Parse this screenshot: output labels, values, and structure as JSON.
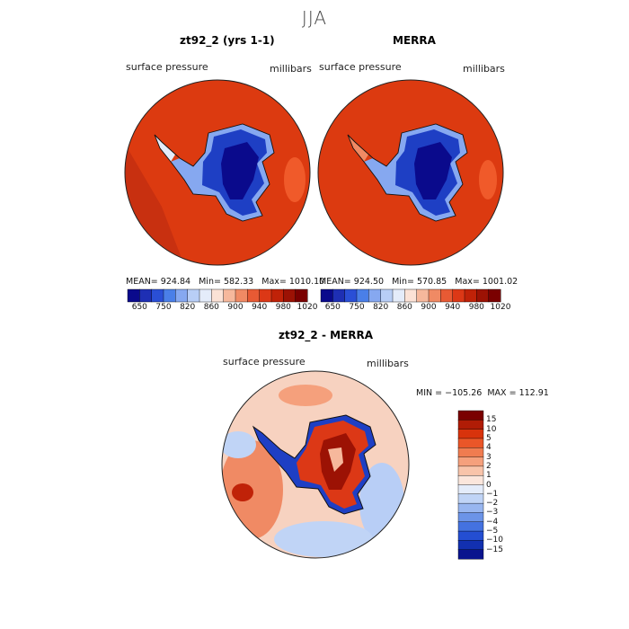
{
  "figure": {
    "season": "JJA"
  },
  "panel_model": {
    "title": "zt92_2 (yrs 1-1)",
    "variable": "surface pressure",
    "units": "millibars",
    "stats": {
      "mean": "924.84",
      "min": "582.33",
      "max": "1010.10"
    }
  },
  "panel_obs": {
    "title": "MERRA",
    "variable": "surface pressure",
    "units": "millibars",
    "stats": {
      "mean": "924.50",
      "min": "570.85",
      "max": "1001.02"
    }
  },
  "panel_diff": {
    "title": "zt92_2 - MERRA",
    "variable": "surface pressure",
    "units": "millibars",
    "stats": {
      "min": "−105.26",
      "max": "112.91"
    }
  },
  "colorbar_abs": {
    "tick_labels": [
      "650",
      "750",
      "820",
      "860",
      "900",
      "940",
      "980",
      "1020"
    ],
    "colors": [
      "#0a0a8c",
      "#1e2fb4",
      "#2a4fd6",
      "#4a7fe8",
      "#86a8f0",
      "#b8cef6",
      "#e4ecfa",
      "#fbe2d6",
      "#f6b89c",
      "#f08a64",
      "#e85a34",
      "#dc3816",
      "#c02208",
      "#9c1204",
      "#7a0000"
    ]
  },
  "colorbar_diff": {
    "tick_labels": [
      "15",
      "10",
      "5",
      "4",
      "3",
      "2",
      "1",
      "0",
      "−1",
      "−2",
      "−3",
      "−4",
      "−5",
      "−10",
      "−15"
    ],
    "colors": [
      "#7a0000",
      "#b01c06",
      "#d8330c",
      "#ea5628",
      "#f07c50",
      "#f5a07c",
      "#f8c4aa",
      "#fbe6dc",
      "#e4ecfa",
      "#c0d4f6",
      "#98b6f0",
      "#6c94e8",
      "#4472e0",
      "#244ed2",
      "#1230b0",
      "#0a148e"
    ]
  },
  "map_colors": {
    "ocean_high": "#dc3a10",
    "ocean_deep": "#c83010",
    "ice_plateau": "#0a0a8c",
    "ice_mid": "#1e3fc4",
    "ice_edge": "#86a8f0",
    "diff_ocean": "#f3a880",
    "diff_neg": "#b8cef6"
  }
}
